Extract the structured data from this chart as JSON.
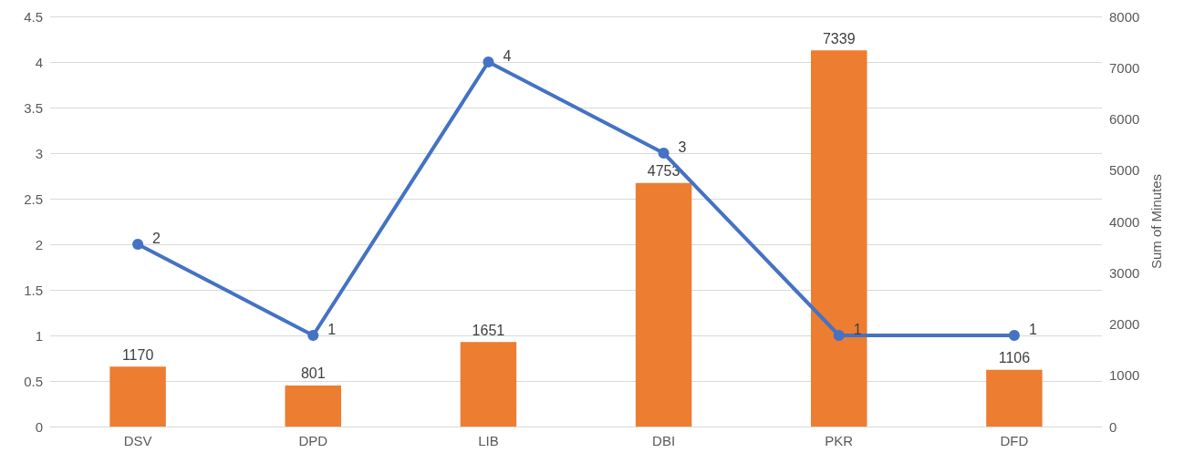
{
  "chart_data": {
    "type": "bar",
    "categories": [
      "DSV",
      "DPD",
      "LIB",
      "DBI",
      "PKR",
      "DFD"
    ],
    "series": [
      {
        "axis": "y2",
        "color": "#ed7d31",
        "values": [
          1170,
          801,
          1651,
          4753,
          7339,
          1106
        ]
      },
      {
        "type": "line",
        "axis": "y",
        "color": "#4472c4",
        "values": [
          2,
          1,
          4,
          3,
          1,
          1
        ]
      }
    ],
    "y2label": "Sum of Minutes",
    "ylim": [
      0,
      4.5
    ],
    "yticks": [
      0,
      0.5,
      1,
      1.5,
      2,
      2.5,
      3,
      3.5,
      4,
      4.5
    ],
    "y2lim": [
      0,
      8000
    ],
    "y2ticks": [
      0,
      1000,
      2000,
      3000,
      4000,
      5000,
      6000,
      7000,
      8000
    ],
    "grid": "y",
    "data_labels": true,
    "marker": "circle",
    "line_style": "solid"
  }
}
